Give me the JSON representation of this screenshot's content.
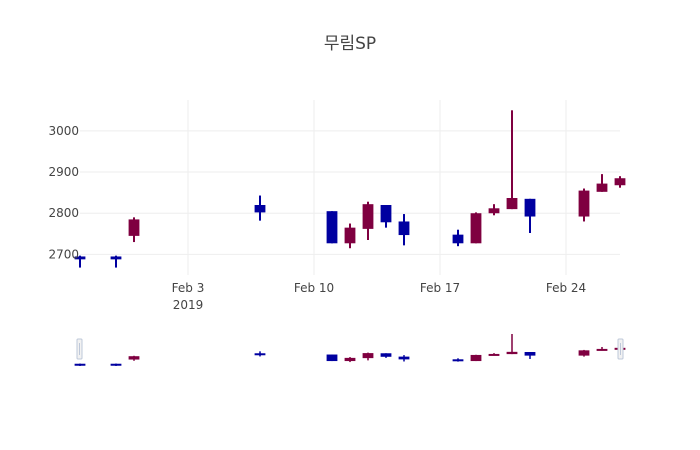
{
  "chart_data": {
    "type": "candlestick",
    "title": "무림SP",
    "xlabel": "",
    "ylabel": "",
    "x_range": [
      "2019-01-28",
      "2019-02-27"
    ],
    "ylim": [
      2650,
      3075
    ],
    "y_ticks": [
      2700,
      2800,
      2900,
      3000
    ],
    "x_ticks": [
      {
        "date": "2019-02-03",
        "label": "Feb 3",
        "sublabel": "2019"
      },
      {
        "date": "2019-02-10",
        "label": "Feb 10",
        "sublabel": ""
      },
      {
        "date": "2019-02-17",
        "label": "Feb 17",
        "sublabel": ""
      },
      {
        "date": "2019-02-24",
        "label": "Feb 24",
        "sublabel": ""
      }
    ],
    "grid": true,
    "rangeslider": true,
    "colors": {
      "increasing": "#7f0040",
      "decreasing": "#0000a0",
      "grid": "#eeeeee",
      "text": "#444444"
    },
    "candles": [
      {
        "date": "2019-01-28",
        "open": 2695,
        "high": 2697,
        "low": 2668,
        "close": 2688
      },
      {
        "date": "2019-01-30",
        "open": 2695,
        "high": 2697,
        "low": 2668,
        "close": 2688
      },
      {
        "date": "2019-01-31",
        "open": 2745,
        "high": 2790,
        "low": 2730,
        "close": 2785
      },
      {
        "date": "2019-02-07",
        "open": 2820,
        "high": 2843,
        "low": 2782,
        "close": 2802
      },
      {
        "date": "2019-02-11",
        "open": 2805,
        "high": 2805,
        "low": 2727,
        "close": 2727
      },
      {
        "date": "2019-02-12",
        "open": 2727,
        "high": 2775,
        "low": 2715,
        "close": 2765
      },
      {
        "date": "2019-02-13",
        "open": 2762,
        "high": 2828,
        "low": 2735,
        "close": 2822
      },
      {
        "date": "2019-02-14",
        "open": 2820,
        "high": 2820,
        "low": 2765,
        "close": 2778
      },
      {
        "date": "2019-02-15",
        "open": 2780,
        "high": 2798,
        "low": 2722,
        "close": 2747
      },
      {
        "date": "2019-02-18",
        "open": 2748,
        "high": 2760,
        "low": 2720,
        "close": 2727
      },
      {
        "date": "2019-02-19",
        "open": 2727,
        "high": 2802,
        "low": 2727,
        "close": 2800
      },
      {
        "date": "2019-02-20",
        "open": 2800,
        "high": 2822,
        "low": 2795,
        "close": 2812
      },
      {
        "date": "2019-02-21",
        "open": 2810,
        "high": 3050,
        "low": 2810,
        "close": 2837
      },
      {
        "date": "2019-02-22",
        "open": 2835,
        "high": 2835,
        "low": 2752,
        "close": 2792
      },
      {
        "date": "2019-02-25",
        "open": 2792,
        "high": 2860,
        "low": 2780,
        "close": 2855
      },
      {
        "date": "2019-02-26",
        "open": 2852,
        "high": 2895,
        "low": 2852,
        "close": 2872
      },
      {
        "date": "2019-02-27",
        "open": 2868,
        "high": 2890,
        "low": 2862,
        "close": 2885
      }
    ]
  }
}
